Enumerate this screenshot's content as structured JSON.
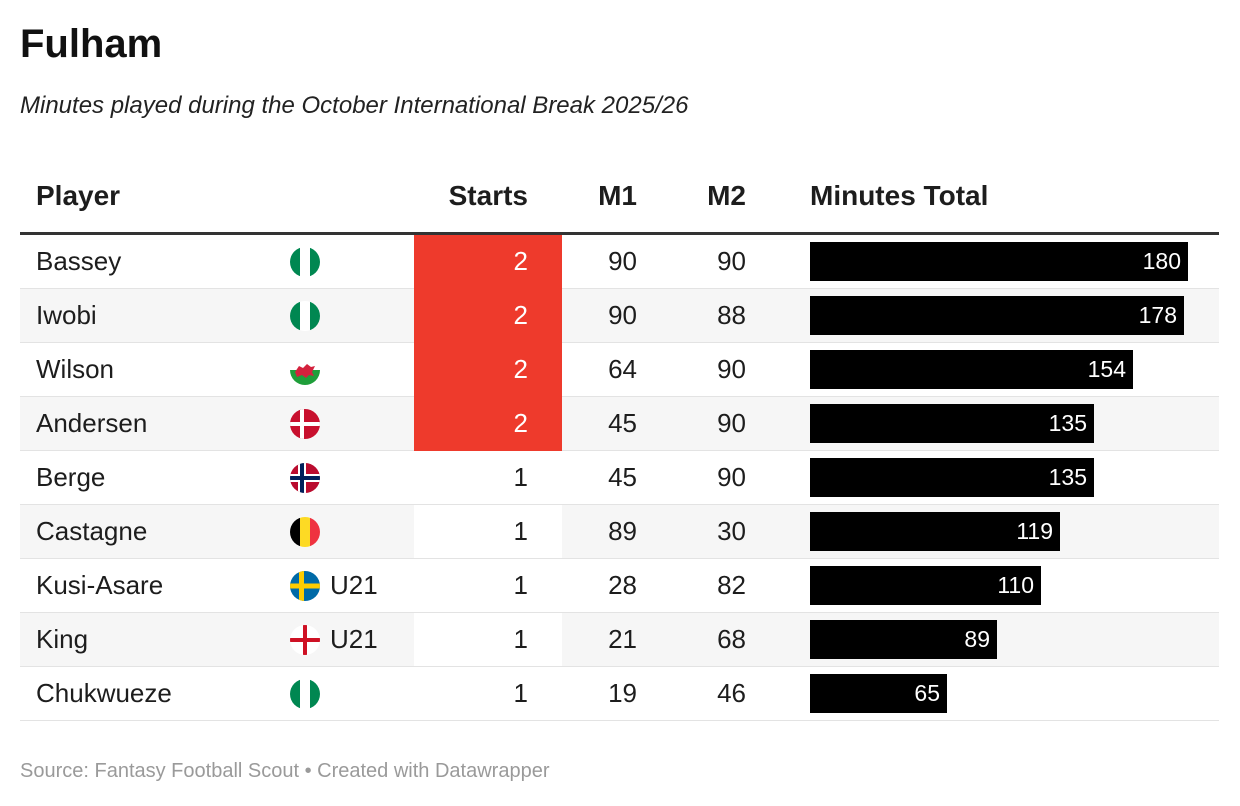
{
  "title": "Fulham",
  "subtitle": "Minutes played during the October International Break 2025/26",
  "footer": "Source: Fantasy Football Scout • Created with Datawrapper",
  "colors": {
    "starts_highlight": "#ee3a2c",
    "bar": "#000000",
    "zebra": "#f6f6f6"
  },
  "chart_data": {
    "type": "table",
    "columns": [
      "Player",
      "Starts",
      "M1",
      "M2",
      "Minutes Total"
    ],
    "max_total": 180,
    "rows": [
      {
        "player": "Bassey",
        "flag": "nigeria-flag-icon",
        "note": "",
        "starts": 2,
        "m1": 90,
        "m2": 90,
        "total": 180
      },
      {
        "player": "Iwobi",
        "flag": "nigeria-flag-icon",
        "note": "",
        "starts": 2,
        "m1": 90,
        "m2": 88,
        "total": 178
      },
      {
        "player": "Wilson",
        "flag": "wales-flag-icon",
        "note": "",
        "starts": 2,
        "m1": 64,
        "m2": 90,
        "total": 154
      },
      {
        "player": "Andersen",
        "flag": "denmark-flag-icon",
        "note": "",
        "starts": 2,
        "m1": 45,
        "m2": 90,
        "total": 135
      },
      {
        "player": "Berge",
        "flag": "norway-flag-icon",
        "note": "",
        "starts": 1,
        "m1": 45,
        "m2": 90,
        "total": 135
      },
      {
        "player": "Castagne",
        "flag": "belgium-flag-icon",
        "note": "",
        "starts": 1,
        "m1": 89,
        "m2": 30,
        "total": 119
      },
      {
        "player": "Kusi-Asare",
        "flag": "sweden-flag-icon",
        "note": "U21",
        "starts": 1,
        "m1": 28,
        "m2": 82,
        "total": 110
      },
      {
        "player": "King",
        "flag": "england-flag-icon",
        "note": "U21",
        "starts": 1,
        "m1": 21,
        "m2": 68,
        "total": 89
      },
      {
        "player": "Chukwueze",
        "flag": "nigeria-flag-icon",
        "note": "",
        "starts": 1,
        "m1": 19,
        "m2": 46,
        "total": 65
      }
    ]
  }
}
